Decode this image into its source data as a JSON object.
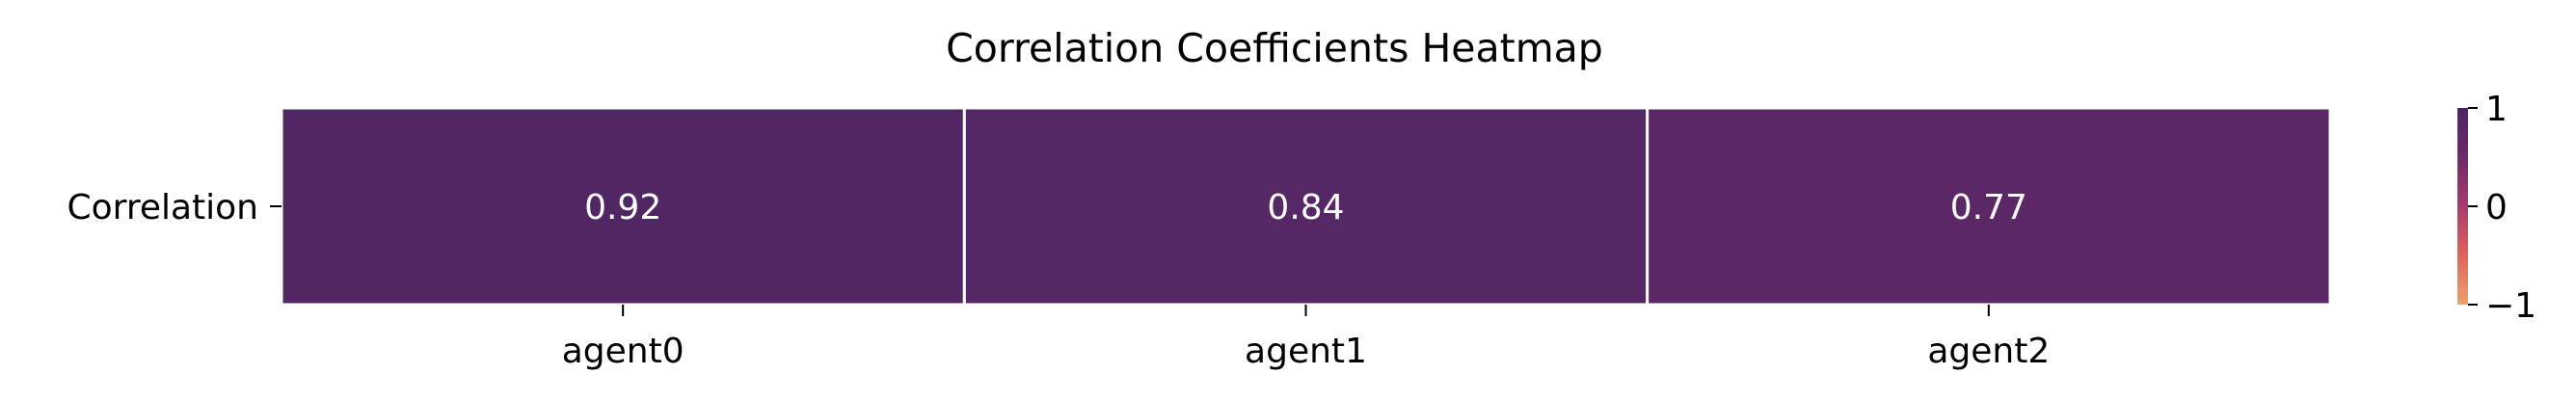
{
  "chart_data": {
    "type": "heatmap",
    "title": "Correlation Coefficients Heatmap",
    "row_labels": [
      "Correlation"
    ],
    "column_labels": [
      "agent0",
      "agent1",
      "agent2"
    ],
    "values": [
      [
        0.92,
        0.84,
        0.77
      ]
    ],
    "value_labels": [
      "0.92",
      "0.84",
      "0.77"
    ],
    "colorbar": {
      "range": [
        -1,
        1
      ],
      "ticks": [
        1,
        0,
        -1
      ],
      "tick_labels": [
        "1",
        "0",
        "−1"
      ]
    },
    "colors": {
      "colormap_stops": [
        "#eaa26e",
        "#e0645b",
        "#a53c6c",
        "#6d2a6c",
        "#4b2563"
      ],
      "cell_border": "#ffffff",
      "cell_text": "#ffffff"
    }
  }
}
